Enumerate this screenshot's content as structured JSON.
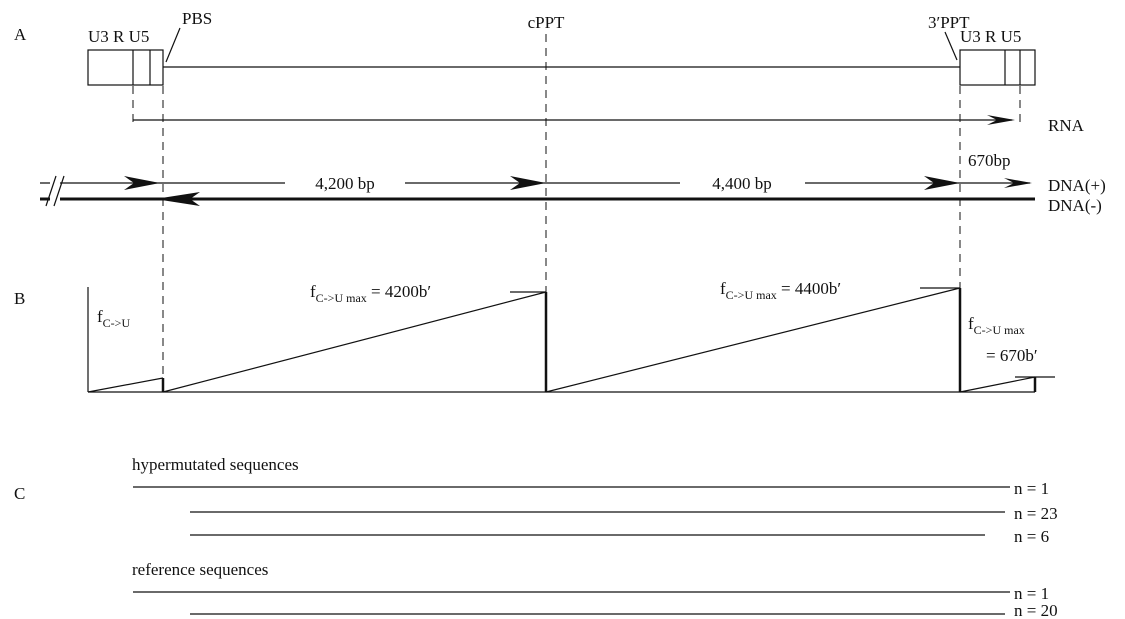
{
  "panel_a": {
    "label": "A",
    "left_ltr": "U3 R U5",
    "right_ltr": "U3 R U5",
    "pbs": "PBS",
    "cppt": "cPPT",
    "ppt3": "3′PPT",
    "rna": "RNA",
    "len_1": "4,200 bp",
    "len_2": "4,400 bp",
    "len_3": "670bp",
    "dna_plus": "DNA(+)",
    "dna_minus": "DNA(-)"
  },
  "panel_b": {
    "label": "B",
    "annotations": [
      {
        "base": "f",
        "sub": "C->U"
      },
      {
        "base": "f",
        "sub": "C->U max",
        "rest": " = 4200b′"
      },
      {
        "base": "f",
        "sub": "C->U max",
        "rest": " = 4400b′"
      },
      {
        "base": "f",
        "sub": "C->U max",
        "rest": "= 670b′"
      }
    ]
  },
  "panel_c": {
    "label": "C",
    "groups": [
      {
        "title": "hypermutated sequences",
        "lines": [
          "n = 1",
          "n = 23",
          "n = 6"
        ]
      },
      {
        "title": "reference sequences",
        "lines": [
          "n = 1",
          "n = 20"
        ]
      }
    ]
  }
}
